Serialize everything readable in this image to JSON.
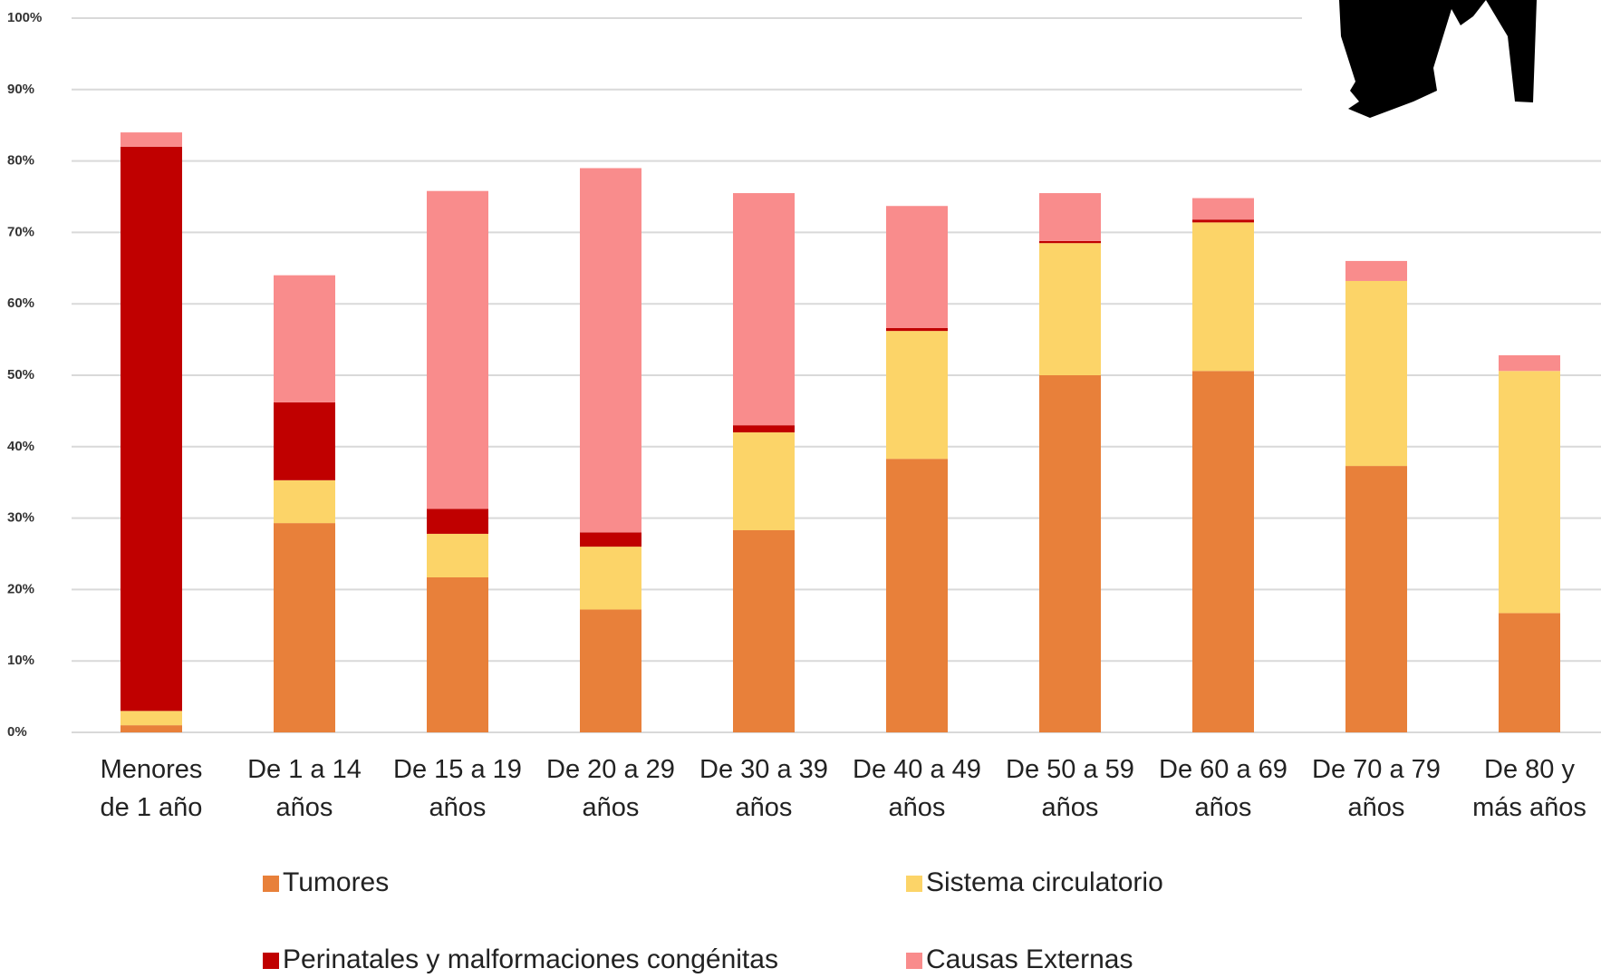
{
  "chart_data": {
    "type": "stacked_bar",
    "categories": [
      "Menores de 1 año",
      "De 1 a 14 años",
      "De 15 a 19 años",
      "De 20 a 29 años",
      "De 30 a 39 años",
      "De 40 a 49 años",
      "De 50 a 59 años",
      "De 60 a 69 años",
      "De 70 a 79 años",
      "De 80 y más años"
    ],
    "series": [
      {
        "name": "Tumores",
        "color": "#e8803a",
        "values": [
          1,
          29.3,
          21.7,
          17.2,
          28.3,
          38.3,
          50,
          50.6,
          37.3,
          16.7
        ]
      },
      {
        "name": "Sistema circulatorio",
        "color": "#fcd468",
        "values": [
          2,
          6,
          6.1,
          8.8,
          13.7,
          17.9,
          18.5,
          20.8,
          25.9,
          33.9
        ]
      },
      {
        "name": "Perinatales y malformaciones congénitas",
        "color": "#c00000",
        "values": [
          79,
          10.9,
          3.5,
          2,
          1,
          0.4,
          0.3,
          0.4,
          0,
          0
        ]
      },
      {
        "name": "Causas Externas",
        "color": "#f98c8c",
        "values": [
          2,
          17.8,
          44.5,
          51,
          32.5,
          17.1,
          6.7,
          3,
          2.8,
          2.2
        ]
      }
    ],
    "ylim": [
      0,
      100
    ],
    "yticks": [
      {
        "value": 0,
        "label": "0%"
      },
      {
        "value": 10,
        "label": "10%"
      },
      {
        "value": 20,
        "label": "20%"
      },
      {
        "value": 30,
        "label": "30%"
      },
      {
        "value": 40,
        "label": "40%"
      },
      {
        "value": 50,
        "label": "50%"
      },
      {
        "value": 60,
        "label": "60%"
      },
      {
        "value": 70,
        "label": "70%"
      },
      {
        "value": 80,
        "label": "80%"
      },
      {
        "value": 90,
        "label": "90%"
      },
      {
        "value": 100,
        "label": "100%"
      }
    ],
    "grid": true
  }
}
